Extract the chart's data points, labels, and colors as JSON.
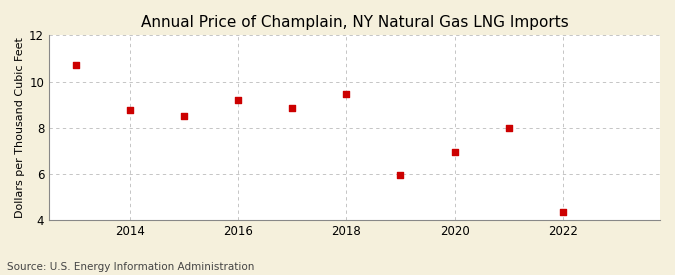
{
  "title": "Annual Price of Champlain, NY Natural Gas LNG Imports",
  "ylabel": "Dollars per Thousand Cubic Feet",
  "source": "Source: U.S. Energy Information Administration",
  "years": [
    2013,
    2014,
    2015,
    2016,
    2017,
    2018,
    2019,
    2020,
    2021,
    2022,
    2023
  ],
  "values": [
    10.7,
    8.75,
    8.5,
    9.2,
    8.85,
    9.45,
    5.95,
    6.95,
    8.0,
    4.35,
    null
  ],
  "xlim": [
    2012.5,
    2023.8
  ],
  "ylim": [
    4,
    12
  ],
  "yticks": [
    4,
    6,
    8,
    10,
    12
  ],
  "xticks": [
    2014,
    2016,
    2018,
    2020,
    2022
  ],
  "marker_color": "#cc0000",
  "marker": "s",
  "marker_size": 4,
  "figure_bg_color": "#f5f0dc",
  "plot_bg_color": "#ffffff",
  "grid_color": "#bbbbbb",
  "title_fontsize": 11,
  "label_fontsize": 8,
  "tick_fontsize": 8.5,
  "source_fontsize": 7.5
}
